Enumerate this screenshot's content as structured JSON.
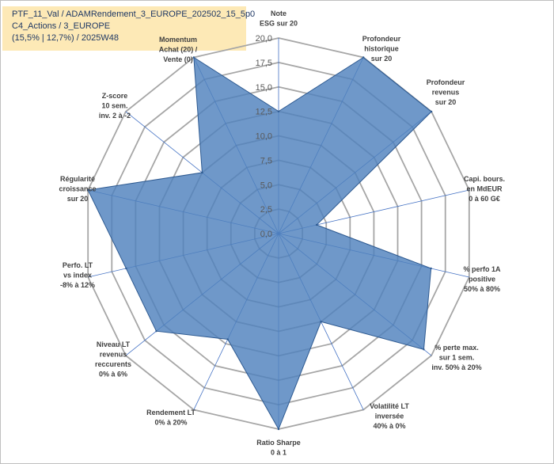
{
  "title": {
    "line1": "PTF_11_Val / ADAMRendement_3_EUROPE_202502_15_5p0",
    "line2": "C4_Actions / 3_EUROPE",
    "line3": "(15,5% | 12,7%) / 2025W48"
  },
  "chart_data": {
    "type": "radar",
    "title": "PTF_11_Val / ADAMRendement_3_EUROPE_202502_15_5p0 C4_Actions / 3_EUROPE (15,5% | 12,7%) / 2025W48",
    "rlim": [
      0,
      20
    ],
    "r_ticks": [
      "0,0",
      "2,5",
      "5,0",
      "7,5",
      "10,0",
      "12,5",
      "15,0",
      "17,5",
      "20,0"
    ],
    "r_tick_values": [
      0,
      2.5,
      5,
      7.5,
      10,
      12.5,
      15,
      17.5,
      20
    ],
    "axes": [
      {
        "label_lines": [
          "Note",
          "ESG sur 20"
        ]
      },
      {
        "label_lines": [
          "Profondeur",
          "historique",
          "sur 20"
        ]
      },
      {
        "label_lines": [
          "Profondeur",
          "revenus",
          "sur 20"
        ]
      },
      {
        "label_lines": [
          "Capi. bours.",
          "en MdEUR",
          "0 à 60 G€"
        ]
      },
      {
        "label_lines": [
          "% perfo 1A",
          "positive",
          "50% à 80%"
        ]
      },
      {
        "label_lines": [
          "% perte max.",
          "sur 1 sem.",
          "inv. 50% à 20%"
        ]
      },
      {
        "label_lines": [
          "Volatilité LT",
          "inversée",
          "40% à 0%"
        ]
      },
      {
        "label_lines": [
          "Ratio Sharpe",
          "0 à 1"
        ]
      },
      {
        "label_lines": [
          "Rendement LT",
          "0% à 20%"
        ]
      },
      {
        "label_lines": [
          "Niveau LT",
          "revenus",
          "reccurents",
          "0% à 6%"
        ]
      },
      {
        "label_lines": [
          "Perfo. LT",
          "vs index",
          "-8% à 12%"
        ]
      },
      {
        "label_lines": [
          "Régularité",
          "croissance",
          "sur 20"
        ]
      },
      {
        "label_lines": [
          "Z-score",
          "10 sem.",
          "inv. 2 à -2"
        ]
      },
      {
        "label_lines": [
          "Momentum",
          "Achat (20) /",
          "Vente (0)"
        ]
      }
    ],
    "series": [
      {
        "name": "PTF_11_Val",
        "values": [
          12.5,
          20,
          20,
          4,
          16,
          19,
          10,
          20,
          12,
          16,
          16,
          20,
          10,
          20
        ]
      }
    ],
    "colors": {
      "fill": "#4f81bd",
      "stroke": "#2e5a91",
      "grid": "#a6a6a6",
      "spoke": "#4472c4",
      "highlight": "#fde9b6"
    }
  }
}
